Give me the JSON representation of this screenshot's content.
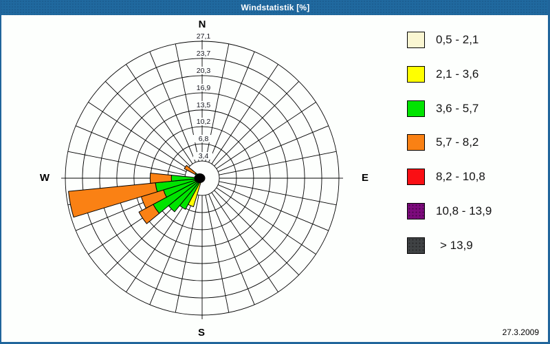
{
  "window": {
    "title": "Windstatistik [%]",
    "date": "27.3.2009"
  },
  "chart_data": {
    "type": "wind-rose",
    "title": "Windstatistik [%]",
    "unit": "%",
    "compass_labels": {
      "north": "N",
      "east": "E",
      "south": "S",
      "west": "W"
    },
    "radial_axis": {
      "max": 27.1,
      "tick_values": [
        3.4,
        6.8,
        10.2,
        13.5,
        16.9,
        20.3,
        23.7,
        27.1
      ],
      "tick_labels": [
        "3,4",
        "6,8",
        "10,2",
        "13,5",
        "16,9",
        "20,3",
        "23,7",
        "27,1"
      ]
    },
    "sector_count": 32,
    "sector_width_deg": 11.25,
    "grid_color": "#000000",
    "speed_classes": [
      {
        "label": "0,5 - 2,1",
        "color": "#FAF6D2",
        "textured": false
      },
      {
        "label": "2,1 - 3,6",
        "color": "#FFFF00",
        "textured": false
      },
      {
        "label": "3,6 - 5,7",
        "color": "#00E400",
        "textured": false
      },
      {
        "label": "5,7 - 8,2",
        "color": "#FA8114",
        "textured": false
      },
      {
        "label": "8,2 - 10,8",
        "color": "#FA0F14",
        "textured": false
      },
      {
        "label": "10,8 - 13,9",
        "color": "#7C0A7C",
        "textured": true
      },
      {
        "label": "> 13,9",
        "color": "#3F4244",
        "textured": true
      }
    ],
    "sectors": [
      {
        "direction_deg": 202.5,
        "segments": [
          {
            "speed_class": "2,1 - 3,6",
            "color": "#FFFF00",
            "from": 0,
            "to": 5.9
          }
        ]
      },
      {
        "direction_deg": 213.75,
        "segments": [
          {
            "speed_class": "3,6 - 5,7",
            "color": "#00E400",
            "from": 0,
            "to": 7.0
          }
        ]
      },
      {
        "direction_deg": 225,
        "segments": [
          {
            "speed_class": "3,6 - 5,7",
            "color": "#00E400",
            "from": 0,
            "to": 8.6
          }
        ]
      },
      {
        "direction_deg": 236.25,
        "segments": [
          {
            "speed_class": "3,6 - 5,7",
            "color": "#00E400",
            "from": 0,
            "to": 11.0
          },
          {
            "speed_class": "5,7 - 8,2",
            "color": "#FA8114",
            "from": 11.0,
            "to": 14.2
          }
        ]
      },
      {
        "direction_deg": 247.5,
        "segments": [
          {
            "speed_class": "3,6 - 5,7",
            "color": "#00E400",
            "from": 0,
            "to": 8.0
          },
          {
            "speed_class": "5,7 - 8,2",
            "color": "#FA8114",
            "from": 8.0,
            "to": 12.6
          }
        ]
      },
      {
        "direction_deg": 258.75,
        "segments": [
          {
            "speed_class": "3,6 - 5,7",
            "color": "#00E400",
            "from": 0,
            "to": 9.3
          },
          {
            "speed_class": "5,7 - 8,2",
            "color": "#FA8114",
            "from": 9.3,
            "to": 26.6
          }
        ]
      },
      {
        "direction_deg": 270,
        "segments": [
          {
            "speed_class": "3,6 - 5,7",
            "color": "#00E400",
            "from": 0,
            "to": 6.1
          },
          {
            "speed_class": "5,7 - 8,2",
            "color": "#FA8114",
            "from": 6.1,
            "to": 10.3
          }
        ]
      },
      {
        "direction_deg": 303.75,
        "segments": [
          {
            "speed_class": "3,6 - 5,7",
            "color": "#00E400",
            "from": 0,
            "to": 1.6
          },
          {
            "speed_class": "5,7 - 8,2",
            "color": "#FA8114",
            "from": 1.6,
            "to": 4.0
          }
        ]
      }
    ],
    "center_dot_color": "#000000"
  }
}
